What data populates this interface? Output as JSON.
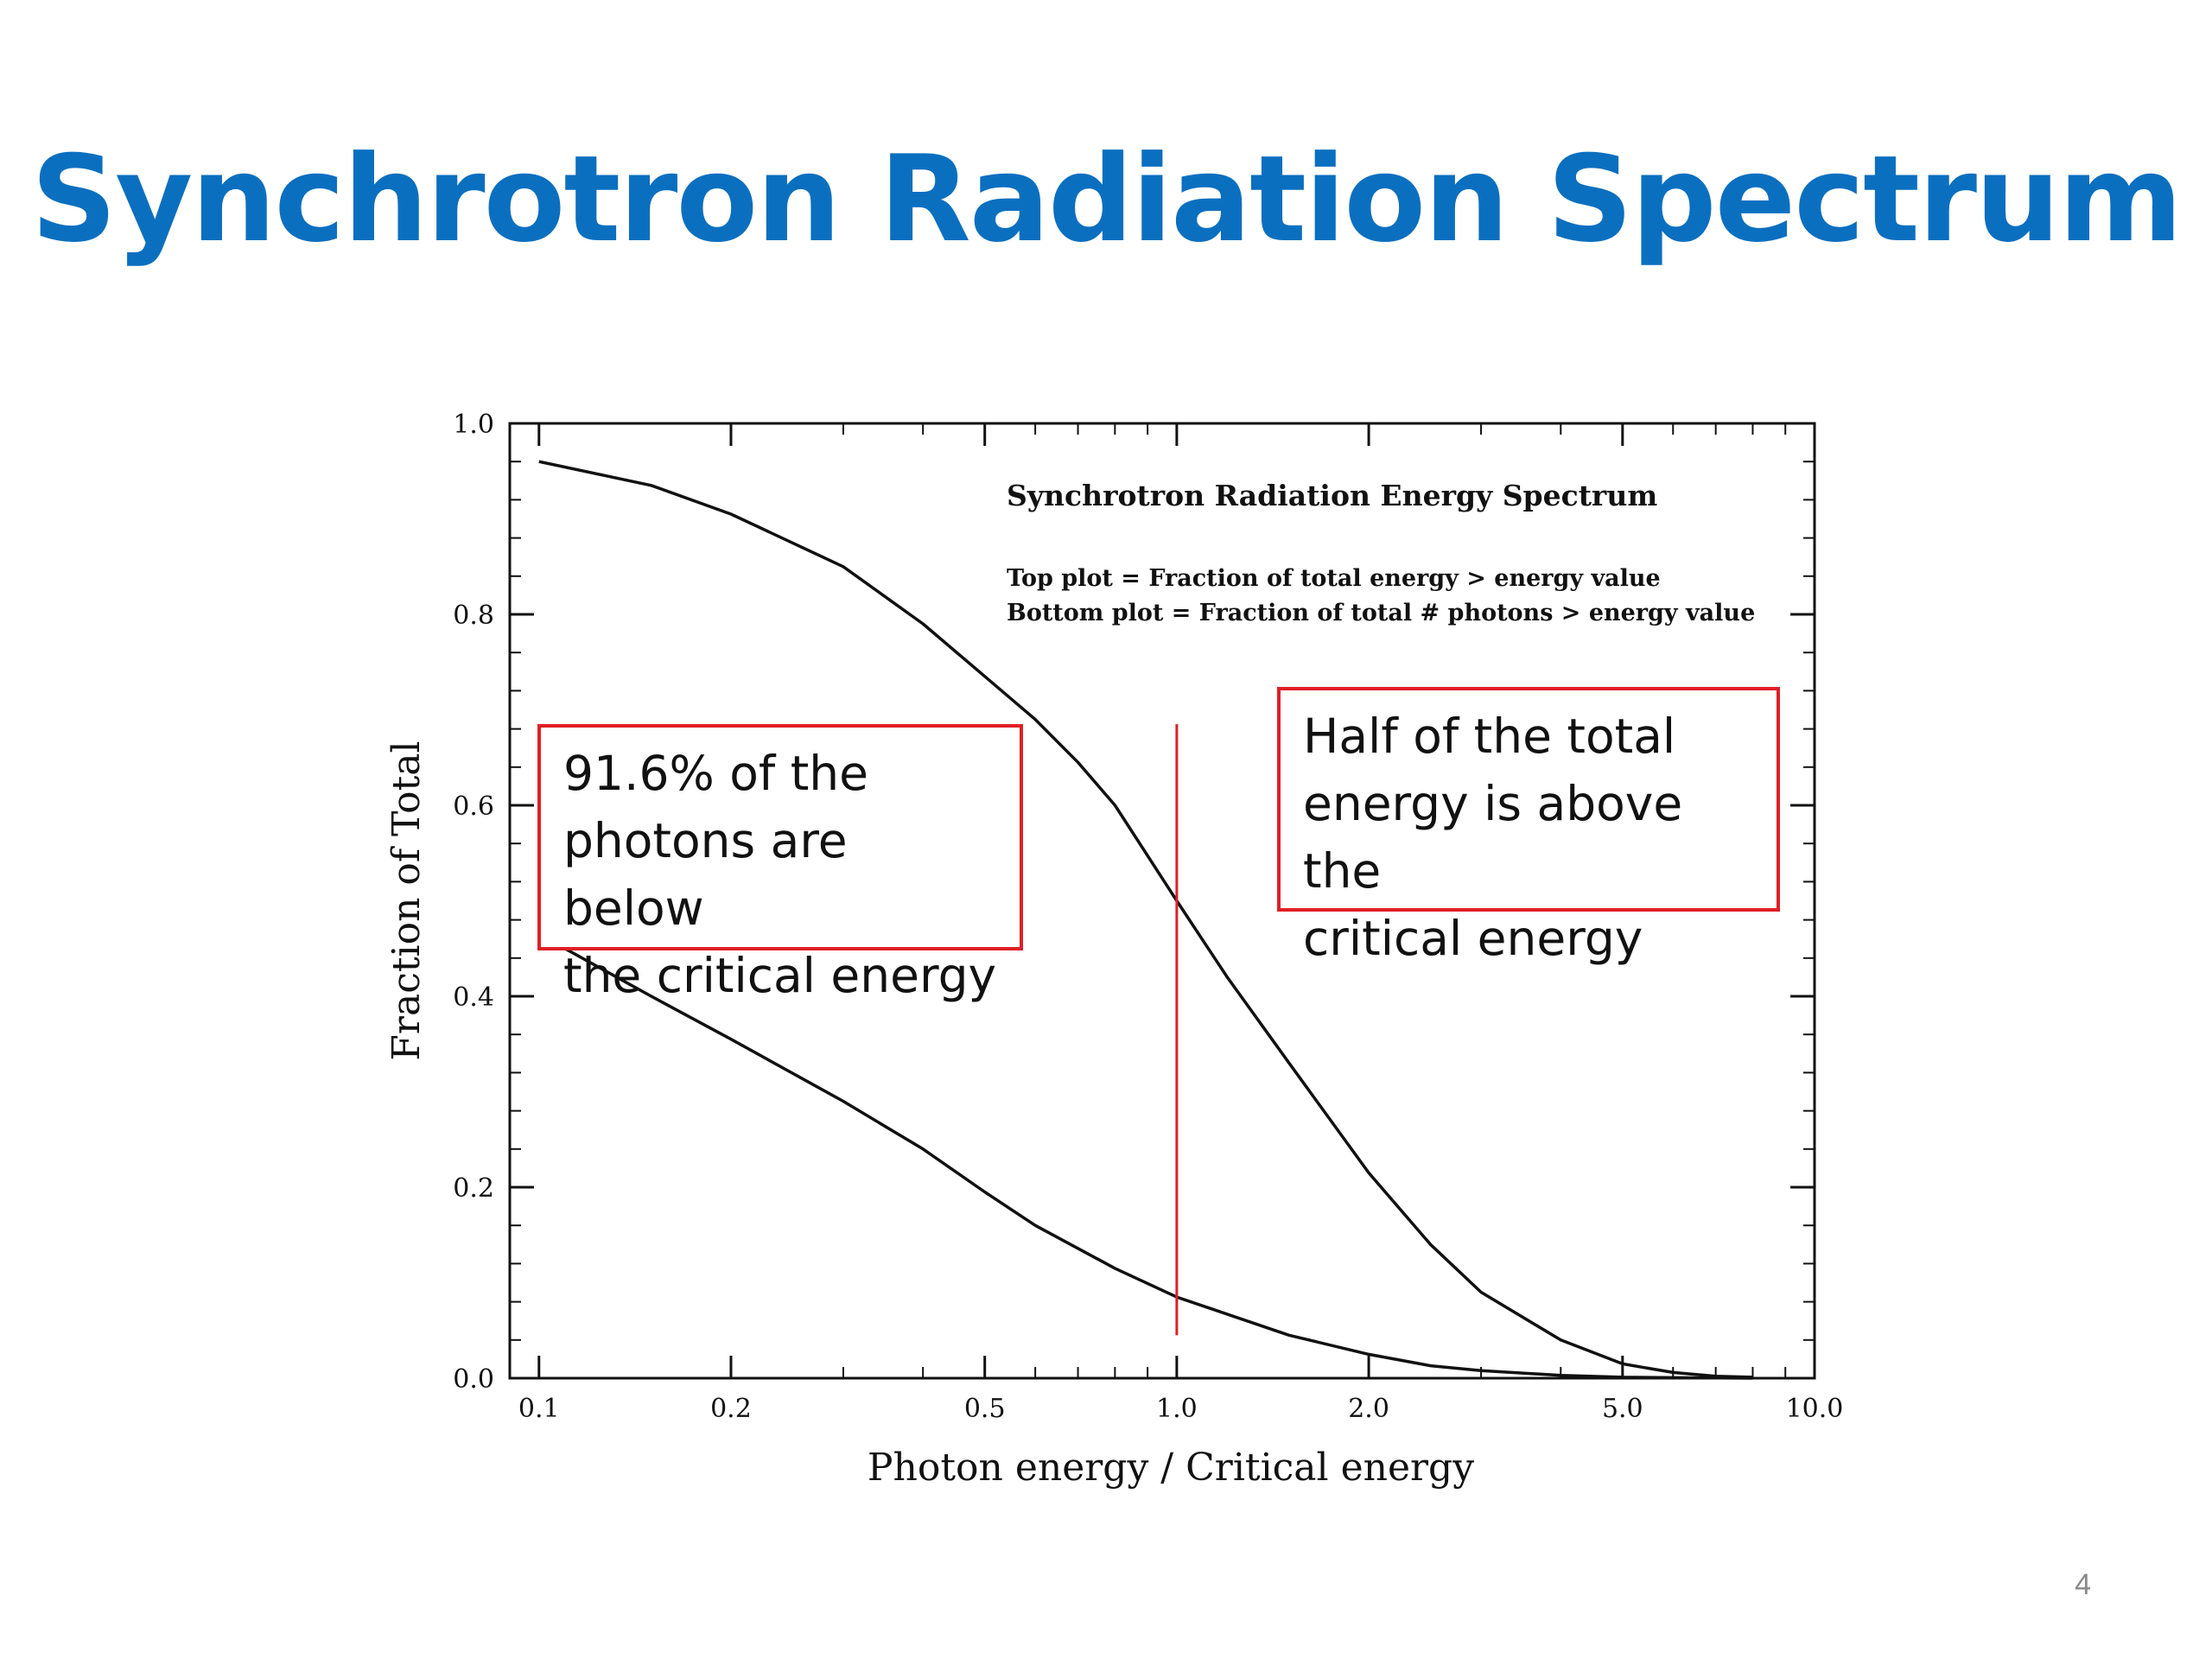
{
  "slide": {
    "title": "Synchrotron Radiation Spectrum",
    "page_number": "4"
  },
  "callouts": {
    "left": [
      "91.6% of the",
      "photons are below",
      "the critical energy"
    ],
    "right": [
      "Half of the total",
      "energy is above the",
      "critical energy"
    ]
  },
  "colors": {
    "title": "#0b6fc0",
    "curves": "#111111",
    "marker": "#e01f26",
    "callout_border": "#e01f26"
  },
  "chart_data": {
    "type": "line",
    "title": "Synchrotron Radiation Energy Spectrum",
    "annotations": [
      "Top plot = Fraction of total energy > energy value",
      "Bottom plot = Fraction of total # photons > energy value"
    ],
    "xlabel": "Photon energy / Critical energy",
    "ylabel": "Fraction of Total",
    "xscale": "log",
    "xlim": [
      0.09,
      10.0
    ],
    "ylim": [
      0.0,
      1.0
    ],
    "xticks": [
      0.1,
      0.2,
      0.5,
      1.0,
      2.0,
      5.0,
      10.0
    ],
    "xtick_labels": [
      "0.1",
      "0.2",
      "0.5",
      "1.0",
      "2.0",
      "5.0",
      "10.0"
    ],
    "yticks": [
      0.0,
      0.2,
      0.4,
      0.6,
      0.8,
      1.0
    ],
    "ytick_labels": [
      "0.0",
      "0.2",
      "0.4",
      "0.6",
      "0.8",
      "1.0"
    ],
    "series": [
      {
        "x": [
          0.1,
          0.15,
          0.2,
          0.3,
          0.4,
          0.5,
          0.6,
          0.7,
          0.8,
          1.0,
          1.2,
          1.5,
          2.0,
          2.5,
          3.0,
          4.0,
          5.0,
          6.0,
          7.0,
          8.0
        ],
        "values": [
          0.96,
          0.935,
          0.905,
          0.85,
          0.79,
          0.735,
          0.69,
          0.645,
          0.6,
          0.5,
          0.42,
          0.33,
          0.215,
          0.14,
          0.09,
          0.04,
          0.015,
          0.006,
          0.002,
          0.001
        ]
      },
      {
        "x": [
          0.1,
          0.15,
          0.2,
          0.3,
          0.4,
          0.5,
          0.6,
          0.8,
          1.0,
          1.5,
          2.0,
          2.5,
          3.0,
          4.0,
          5.0,
          6.0,
          8.0
        ],
        "values": [
          0.465,
          0.4,
          0.355,
          0.29,
          0.24,
          0.195,
          0.16,
          0.115,
          0.085,
          0.045,
          0.025,
          0.013,
          0.008,
          0.003,
          0.001,
          0.0005,
          0.0
        ]
      }
    ],
    "marker_line": {
      "x": 1.0,
      "y_range": [
        0.045,
        0.685
      ]
    }
  }
}
